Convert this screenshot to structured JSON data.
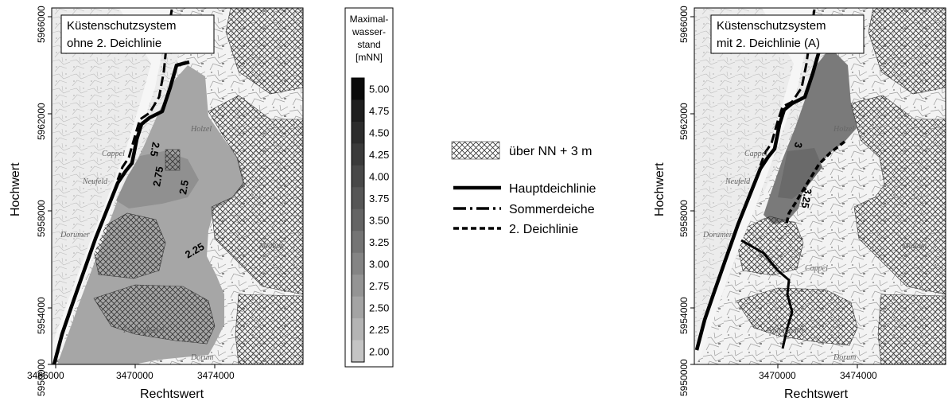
{
  "left_map": {
    "title_line1": "Küstenschutzsystem",
    "title_line2": "ohne 2. Deichlinie",
    "x_ticks": [
      "3466000",
      "3470000",
      "3474000"
    ],
    "y_ticks": [
      "5966000",
      "5962000",
      "5958000",
      "5954000",
      "5950000"
    ],
    "x_label": "Rechtswert",
    "y_label": "Hochwert",
    "contour_labels": [
      "2.5",
      "2.75",
      "2.5",
      "2.25"
    ]
  },
  "right_map": {
    "title_line1": "Küstenschutzsystem",
    "title_line2": "mit 2. Deichlinie (A)",
    "x_ticks": [
      "3470000",
      "3474000"
    ],
    "y_ticks": [
      "5966000",
      "5962000",
      "5958000",
      "5954000",
      "5950000"
    ],
    "x_label": "Rechtswert",
    "y_label": "Hochwert",
    "contour_labels": [
      "3",
      "3.25"
    ]
  },
  "colorbar": {
    "title_lines": [
      "Maximal-",
      "wasser-",
      "stand",
      "[mNN]"
    ],
    "levels": [
      "5.00",
      "4.75",
      "4.50",
      "4.25",
      "4.00",
      "3.75",
      "3.50",
      "3.25",
      "3.00",
      "2.75",
      "2.50",
      "2.25",
      "2.00"
    ],
    "colors": [
      "#0a0a0a",
      "#1e1e1e",
      "#2c2c2c",
      "#3a3a3a",
      "#484848",
      "#565656",
      "#646464",
      "#747474",
      "#848484",
      "#949494",
      "#a4a4a4",
      "#b4b4b4",
      "#c4c4c4"
    ]
  },
  "legend": {
    "hatch_label": "über NN + 3 m",
    "line1_label": "Hauptdeichlinie",
    "line2_label": "Sommerdeiche",
    "line3_label": "2. Deichlinie"
  },
  "map_place_names": {
    "left": [
      "Cappel",
      "Neufeld",
      "Dorumer",
      "Dorum",
      "Padingbüttel",
      "Midlum",
      "Holzel"
    ],
    "right": [
      "Cappel",
      "Neufeld",
      "Dorumer",
      "Dorum",
      "Padingbüttel",
      "Midlum",
      "Holzel",
      "Cappel"
    ]
  }
}
